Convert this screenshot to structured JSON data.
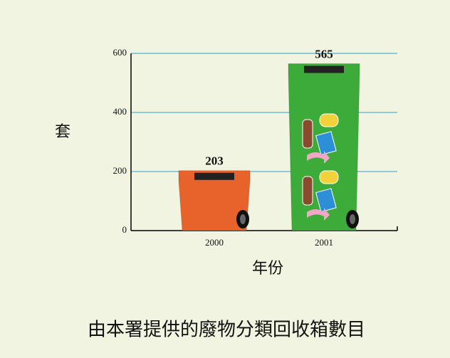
{
  "chart_data": {
    "type": "bar",
    "title": "由本署提供的廢物分類回收箱數目",
    "y_label": "套",
    "x_label": "年份",
    "categories": [
      "2000",
      "2001"
    ],
    "values": [
      203,
      565
    ],
    "colors": [
      "#e8622c",
      "#3dab3a"
    ],
    "ylim": [
      0,
      600
    ],
    "yticks": [
      0,
      200,
      400,
      600
    ],
    "grid": true,
    "grid_color": "#2a9fd0"
  }
}
